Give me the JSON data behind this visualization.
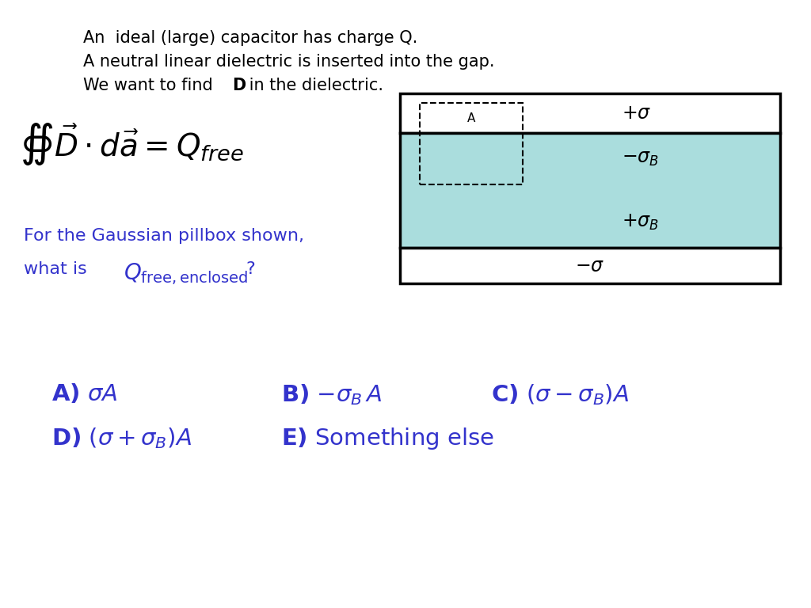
{
  "title_lines": [
    "An  ideal (large) capacitor has charge Q.",
    "A neutral linear dielectric is inserted into the gap.",
    "We want to find \\textbf{D} in the dielectric."
  ],
  "gaussian_text_line1": "For the Gaussian pillbox shown,",
  "gaussian_text_line2": "what is $Q_{\\mathrm{free,enclosed}}$?",
  "blue_color": "#3333cc",
  "black_color": "#000000",
  "bg_color": "#ffffff",
  "dielectric_color": "#aadddd",
  "answer_A": "A) $\\sigma A$",
  "answer_B": "B) $-\\sigma_B A$",
  "answer_C": "C) $(\\sigma - \\sigma_B)A$",
  "answer_D": "D) $(\\sigma + \\sigma_B)A$",
  "answer_E": "E) Something else"
}
